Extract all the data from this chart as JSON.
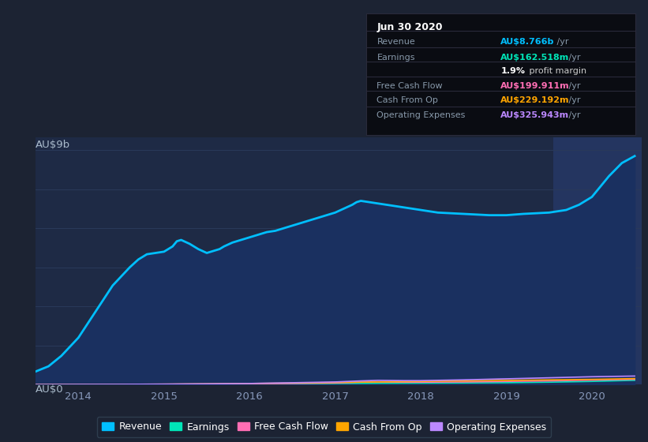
{
  "background_color": "#1c2333",
  "plot_bg_color": "#1e2a45",
  "highlight_bg_color": "#243560",
  "ylabel_top": "AU$9b",
  "ylabel_bottom": "AU$0",
  "x_ticks": [
    "2014",
    "2015",
    "2016",
    "2017",
    "2018",
    "2019",
    "2020"
  ],
  "x_tick_positions": [
    2014,
    2015,
    2016,
    2017,
    2018,
    2019,
    2020
  ],
  "legend_items": [
    {
      "label": "Revenue",
      "color": "#00bfff"
    },
    {
      "label": "Earnings",
      "color": "#00e6b8"
    },
    {
      "label": "Free Cash Flow",
      "color": "#ff6eb4"
    },
    {
      "label": "Cash From Op",
      "color": "#ffa500"
    },
    {
      "label": "Operating Expenses",
      "color": "#bb88ff"
    }
  ],
  "tooltip": {
    "title": "Jun 30 2020",
    "rows": [
      {
        "label": "Revenue",
        "value": "AU$8.766b",
        "suffix": " /yr",
        "value_color": "#00bfff"
      },
      {
        "label": "Earnings",
        "value": "AU$162.518m",
        "suffix": " /yr",
        "value_color": "#00e6b8"
      },
      {
        "label": "",
        "value": "1.9%",
        "suffix": " profit margin",
        "value_color": "#ffffff",
        "bold": true
      },
      {
        "label": "Free Cash Flow",
        "value": "AU$199.911m",
        "suffix": " /yr",
        "value_color": "#ff6eb4"
      },
      {
        "label": "Cash From Op",
        "value": "AU$229.192m",
        "suffix": " /yr",
        "value_color": "#ffa500"
      },
      {
        "label": "Operating Expenses",
        "value": "AU$325.943m",
        "suffix": " /yr",
        "value_color": "#bb88ff"
      }
    ]
  },
  "revenue_x": [
    2013.5,
    2013.65,
    2013.8,
    2014.0,
    2014.2,
    2014.4,
    2014.6,
    2014.7,
    2014.8,
    2014.9,
    2015.0,
    2015.1,
    2015.15,
    2015.2,
    2015.3,
    2015.4,
    2015.5,
    2015.6,
    2015.65,
    2015.7,
    2015.8,
    2015.9,
    2016.0,
    2016.1,
    2016.2,
    2016.3,
    2016.5,
    2016.7,
    2016.9,
    2017.0,
    2017.1,
    2017.2,
    2017.25,
    2017.3,
    2017.4,
    2017.5,
    2017.6,
    2017.7,
    2017.8,
    2017.9,
    2018.0,
    2018.1,
    2018.2,
    2018.5,
    2018.8,
    2019.0,
    2019.2,
    2019.5,
    2019.7,
    2019.85,
    2020.0,
    2020.1,
    2020.2,
    2020.35,
    2020.5
  ],
  "revenue_y": [
    0.5,
    0.7,
    1.1,
    1.8,
    2.8,
    3.8,
    4.5,
    4.8,
    5.0,
    5.05,
    5.1,
    5.3,
    5.5,
    5.55,
    5.4,
    5.2,
    5.05,
    5.15,
    5.2,
    5.3,
    5.45,
    5.55,
    5.65,
    5.75,
    5.85,
    5.9,
    6.1,
    6.3,
    6.5,
    6.6,
    6.75,
    6.9,
    7.0,
    7.05,
    7.0,
    6.95,
    6.9,
    6.85,
    6.8,
    6.75,
    6.7,
    6.65,
    6.6,
    6.55,
    6.5,
    6.5,
    6.55,
    6.6,
    6.7,
    6.9,
    7.2,
    7.6,
    8.0,
    8.5,
    8.77
  ],
  "revenue_color": "#00bfff",
  "revenue_fill": "#1a3060",
  "earnings_x": [
    2013.5,
    2014.0,
    2015.0,
    2015.5,
    2016.0,
    2016.5,
    2017.0,
    2017.5,
    2018.0,
    2018.5,
    2019.0,
    2019.5,
    2020.0,
    2020.5
  ],
  "earnings_y": [
    0.0,
    0.005,
    0.01,
    0.015,
    0.02,
    0.03,
    0.04,
    0.05,
    0.055,
    0.06,
    0.07,
    0.09,
    0.12,
    0.162
  ],
  "earnings_color": "#00e6b8",
  "fcf_x": [
    2013.5,
    2014.0,
    2014.5,
    2015.0,
    2015.5,
    2016.0,
    2016.5,
    2017.0,
    2017.3,
    2017.5,
    2017.8,
    2018.0,
    2018.5,
    2019.0,
    2019.5,
    2020.0,
    2020.5
  ],
  "fcf_y": [
    0.0,
    0.003,
    0.005,
    0.01,
    0.02,
    0.03,
    0.04,
    0.06,
    0.09,
    0.1,
    0.09,
    0.09,
    0.1,
    0.12,
    0.14,
    0.17,
    0.2
  ],
  "fcf_color": "#ff6eb4",
  "cashop_x": [
    2013.5,
    2014.0,
    2014.5,
    2015.0,
    2015.5,
    2016.0,
    2016.5,
    2017.0,
    2017.5,
    2018.0,
    2018.5,
    2019.0,
    2019.5,
    2020.0,
    2020.5
  ],
  "cashop_y": [
    0.0,
    0.005,
    0.008,
    0.015,
    0.025,
    0.04,
    0.06,
    0.08,
    0.1,
    0.12,
    0.14,
    0.16,
    0.18,
    0.2,
    0.229
  ],
  "cashop_color": "#ffa500",
  "opex_x": [
    2013.5,
    2014.0,
    2014.5,
    2015.0,
    2015.5,
    2016.0,
    2016.5,
    2017.0,
    2017.3,
    2017.5,
    2017.8,
    2018.0,
    2018.5,
    2019.0,
    2019.5,
    2020.0,
    2020.5
  ],
  "opex_y": [
    0.0,
    0.005,
    0.008,
    0.015,
    0.025,
    0.04,
    0.07,
    0.1,
    0.14,
    0.16,
    0.15,
    0.15,
    0.18,
    0.22,
    0.26,
    0.3,
    0.326
  ],
  "opex_color": "#bb88ff",
  "highlight_x_start": 2019.55,
  "highlight_x_end": 2020.6,
  "ylim": [
    0,
    9.5
  ],
  "xlim": [
    2013.5,
    2020.58
  ],
  "grid_y_values": [
    1.5,
    3.0,
    4.5,
    6.0,
    7.5,
    9.0
  ],
  "linewidth_minor": 1.2
}
